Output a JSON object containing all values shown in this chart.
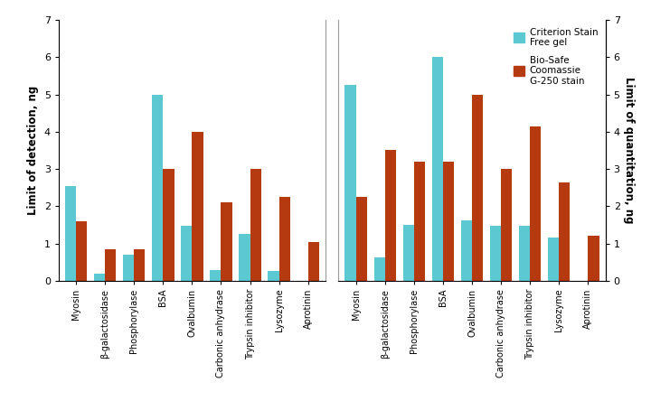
{
  "categories": [
    "Myosin",
    "β-galactosidase",
    "Phosphorylase",
    "BSA",
    "Ovalbumin",
    "Carbonic anhydrase",
    "Trypsin inhibitor",
    "Lysozyme",
    "Aprotinin"
  ],
  "lod_stain_free": [
    2.55,
    0.18,
    0.7,
    5.0,
    1.48,
    0.28,
    1.25,
    0.25,
    0.0
  ],
  "lod_coomassie": [
    1.6,
    0.85,
    0.85,
    3.0,
    4.0,
    2.1,
    3.0,
    2.25,
    1.05
  ],
  "loq_stain_free": [
    5.25,
    0.62,
    1.5,
    6.0,
    1.62,
    1.48,
    1.48,
    1.15,
    0.0
  ],
  "loq_coomassie": [
    2.25,
    3.5,
    3.2,
    3.2,
    5.0,
    3.0,
    4.15,
    2.65,
    1.2
  ],
  "color_stain_free": "#5BC8D2",
  "color_coomassie": "#B53A10",
  "ylabel_left": "Limit of detection, ng",
  "ylabel_right": "Limit of quantitation, ng",
  "ylim": [
    0,
    7
  ],
  "yticks": [
    0,
    1,
    2,
    3,
    4,
    5,
    6,
    7
  ],
  "legend_label_1": "Criterion Stain\nFree gel",
  "legend_label_2": "Bio-Safe\nCoomassie\nG-250 stain",
  "bar_width": 0.38,
  "figsize": [
    7.2,
    4.44
  ],
  "dpi": 100
}
